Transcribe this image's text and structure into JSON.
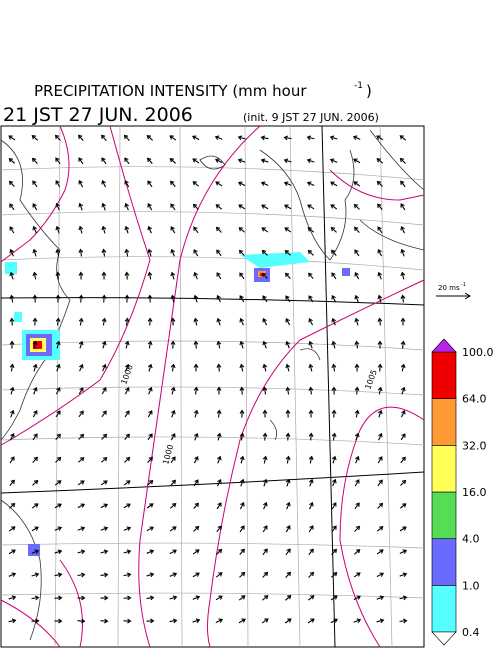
{
  "header": {
    "title": "PRECIPITATION INTENSITY (mm hour",
    "title_exponent": "-1",
    "title_close": ")",
    "valid_time": "21 JST 27 JUN. 2006",
    "init_time": "(init. 9 JST 27 JUN. 2006)"
  },
  "vector_key": {
    "label": "20 ms",
    "exponent": "-1"
  },
  "contour_labels": [
    "1000",
    "1000",
    "1005"
  ],
  "legend": {
    "labels": [
      "0.4",
      "1.0",
      "4.0",
      "16.0",
      "32.0",
      "64.0",
      "100.0"
    ],
    "colors": [
      "#55ffff",
      "#6a6aff",
      "#55dd55",
      "#ffff55",
      "#ff9933",
      "#ee0000"
    ],
    "over_color": "#bb22ee",
    "under_color": "#ffffff"
  }
}
